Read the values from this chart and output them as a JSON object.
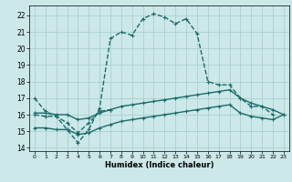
{
  "xlabel": "Humidex (Indice chaleur)",
  "xlim": [
    -0.5,
    23.5
  ],
  "ylim": [
    13.8,
    22.6
  ],
  "xticks": [
    0,
    1,
    2,
    3,
    4,
    5,
    6,
    7,
    8,
    9,
    10,
    11,
    12,
    13,
    14,
    15,
    16,
    17,
    18,
    19,
    20,
    21,
    22,
    23
  ],
  "yticks": [
    14,
    15,
    16,
    17,
    18,
    19,
    20,
    21,
    22
  ],
  "bg_color": "#cce8e8",
  "grid_color": "#aad0d0",
  "line_color": "#1a6b6b",
  "lines": [
    {
      "x": [
        0,
        1,
        2,
        3,
        4,
        5,
        6,
        7,
        8,
        9,
        10,
        11,
        12,
        13,
        14,
        15,
        16,
        17,
        18,
        19,
        20,
        21,
        22,
        23
      ],
      "y": [
        17.0,
        16.2,
        15.9,
        15.1,
        14.3,
        15.1,
        16.4,
        20.6,
        21.0,
        20.8,
        21.8,
        22.1,
        21.9,
        21.5,
        21.8,
        20.9,
        18.0,
        17.8,
        17.8,
        17.0,
        16.5,
        16.5,
        16.0,
        null
      ],
      "marker": "+",
      "ms": 3.5,
      "lw": 1.0,
      "ls": "--"
    },
    {
      "x": [
        0,
        1,
        2,
        3,
        4,
        5,
        6,
        7,
        8,
        9,
        10,
        11,
        12,
        13,
        14,
        15,
        16,
        17,
        18,
        19,
        20,
        21,
        22,
        23
      ],
      "y": [
        16.1,
        16.1,
        16.0,
        16.0,
        15.7,
        15.8,
        16.1,
        16.3,
        16.5,
        16.6,
        16.7,
        16.8,
        16.9,
        17.0,
        17.1,
        17.2,
        17.3,
        17.4,
        17.5,
        17.0,
        16.7,
        16.5,
        16.3,
        16.0
      ],
      "marker": "+",
      "ms": 3.5,
      "lw": 1.0,
      "ls": "-"
    },
    {
      "x": [
        0,
        1,
        2,
        3,
        4,
        5,
        6,
        7,
        8,
        9,
        10,
        11,
        12,
        13,
        14,
        15,
        16,
        17,
        18,
        19,
        20,
        21,
        22,
        23
      ],
      "y": [
        15.2,
        15.2,
        15.1,
        15.1,
        14.8,
        14.9,
        15.2,
        15.4,
        15.6,
        15.7,
        15.8,
        15.9,
        16.0,
        16.1,
        16.2,
        16.3,
        16.4,
        16.5,
        16.6,
        16.1,
        15.9,
        15.8,
        15.7,
        16.0
      ],
      "marker": "+",
      "ms": 3.5,
      "lw": 1.0,
      "ls": "-"
    },
    {
      "x": [
        0,
        1,
        2,
        3,
        4,
        5,
        6,
        7,
        8,
        9,
        10,
        11,
        12,
        13,
        14,
        15,
        16,
        17,
        18,
        19,
        20,
        21,
        22,
        23
      ],
      "y": [
        16.0,
        15.9,
        15.9,
        15.5,
        14.9,
        15.5,
        16.2,
        16.3,
        null,
        null,
        null,
        null,
        null,
        null,
        null,
        null,
        null,
        null,
        null,
        null,
        null,
        null,
        null,
        null
      ],
      "marker": "+",
      "ms": 3.5,
      "lw": 1.0,
      "ls": "--"
    }
  ]
}
